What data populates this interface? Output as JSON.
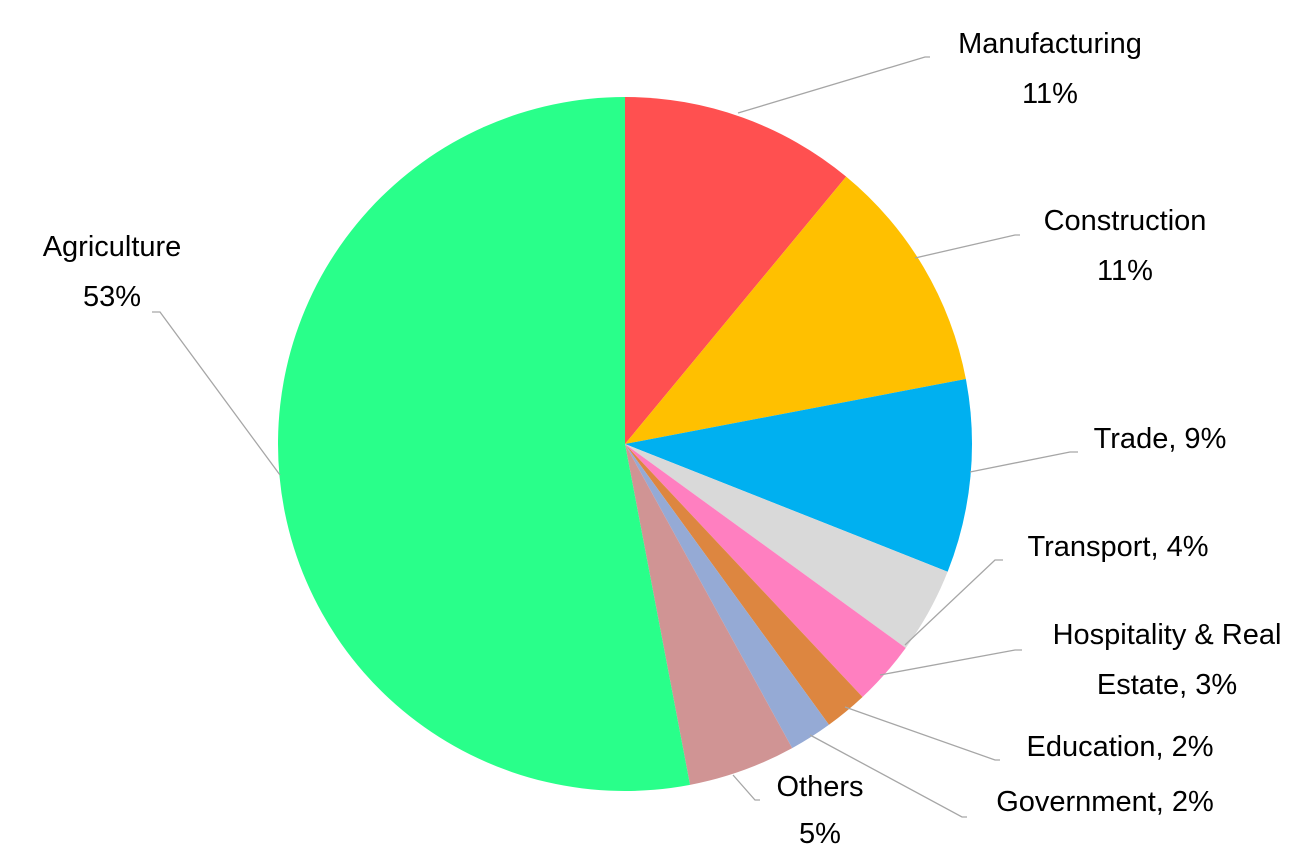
{
  "chart_data": {
    "type": "pie",
    "values": [
      11,
      11,
      9,
      4,
      3,
      2,
      2,
      5,
      53
    ],
    "value_labels": [
      "Manufacturing\n11%",
      "Construction\n11%",
      "Trade, 9%",
      "Transport, 4%",
      "Hospitality & Real\nEstate, 3%",
      "Education, 2%",
      "Government, 2%",
      "Others\n5%",
      "Agriculture\n53%"
    ],
    "colors": [
      "#ff5050",
      "#ffc000",
      "#00b0f0",
      "#d9d9d9",
      "#ff7fc0",
      "#dd8640",
      "#95aad5",
      "#d09494",
      "#29ff8a"
    ]
  }
}
